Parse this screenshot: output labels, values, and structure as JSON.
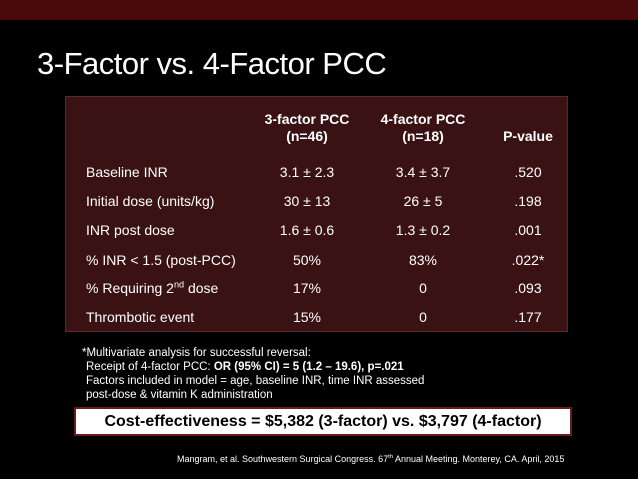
{
  "title": "3-Factor vs. 4-Factor PCC",
  "table": {
    "headers": {
      "col1_line1": "3-factor PCC",
      "col1_line2": "(n=46)",
      "col2_line1": "4-factor PCC",
      "col2_line2": "(n=18)",
      "col3": "P-value"
    },
    "rows": [
      {
        "label": "Baseline INR",
        "f3": "3.1 ± 2.3",
        "f4": "3.4 ± 3.7",
        "p": ".520"
      },
      {
        "label": "Initial dose (units/kg)",
        "f3": "30 ± 13",
        "f4": "26 ± 5",
        "p": ".198"
      },
      {
        "label": "INR post dose",
        "f3": "1.6 ± 0.6",
        "f4": "1.3 ± 0.2",
        "p": ".001"
      },
      {
        "label": "% INR < 1.5 (post-PCC)",
        "f3": "50%",
        "f4": "83%",
        "p": ".022*"
      },
      {
        "label_pre": "% Requiring 2",
        "label_sup": "nd",
        "label_post": " dose",
        "f3": "17%",
        "f4": "0",
        "p": ".093"
      },
      {
        "label": "Thrombotic event",
        "f3": "15%",
        "f4": "0",
        "p": ".177"
      }
    ]
  },
  "notes": {
    "line1": "*Multivariate analysis for successful reversal:",
    "line2_pre": "Receipt of 4-factor PCC: ",
    "line2_bold": "OR (95% CI) = 5 (1.2 – 19.6), p=.021",
    "line3": "Factors included in model = age, baseline INR, time INR assessed",
    "line4": "post-dose  & vitamin K administration"
  },
  "cost": "Cost-effectiveness = $5,382 (3-factor) vs. $3,797 (4-factor)",
  "citation": {
    "pre": "Mangram, et al. Southwestern Surgical Congress.  67",
    "sup": "th",
    "post": " Annual Meeting.  Monterey, CA. April, 2015"
  }
}
